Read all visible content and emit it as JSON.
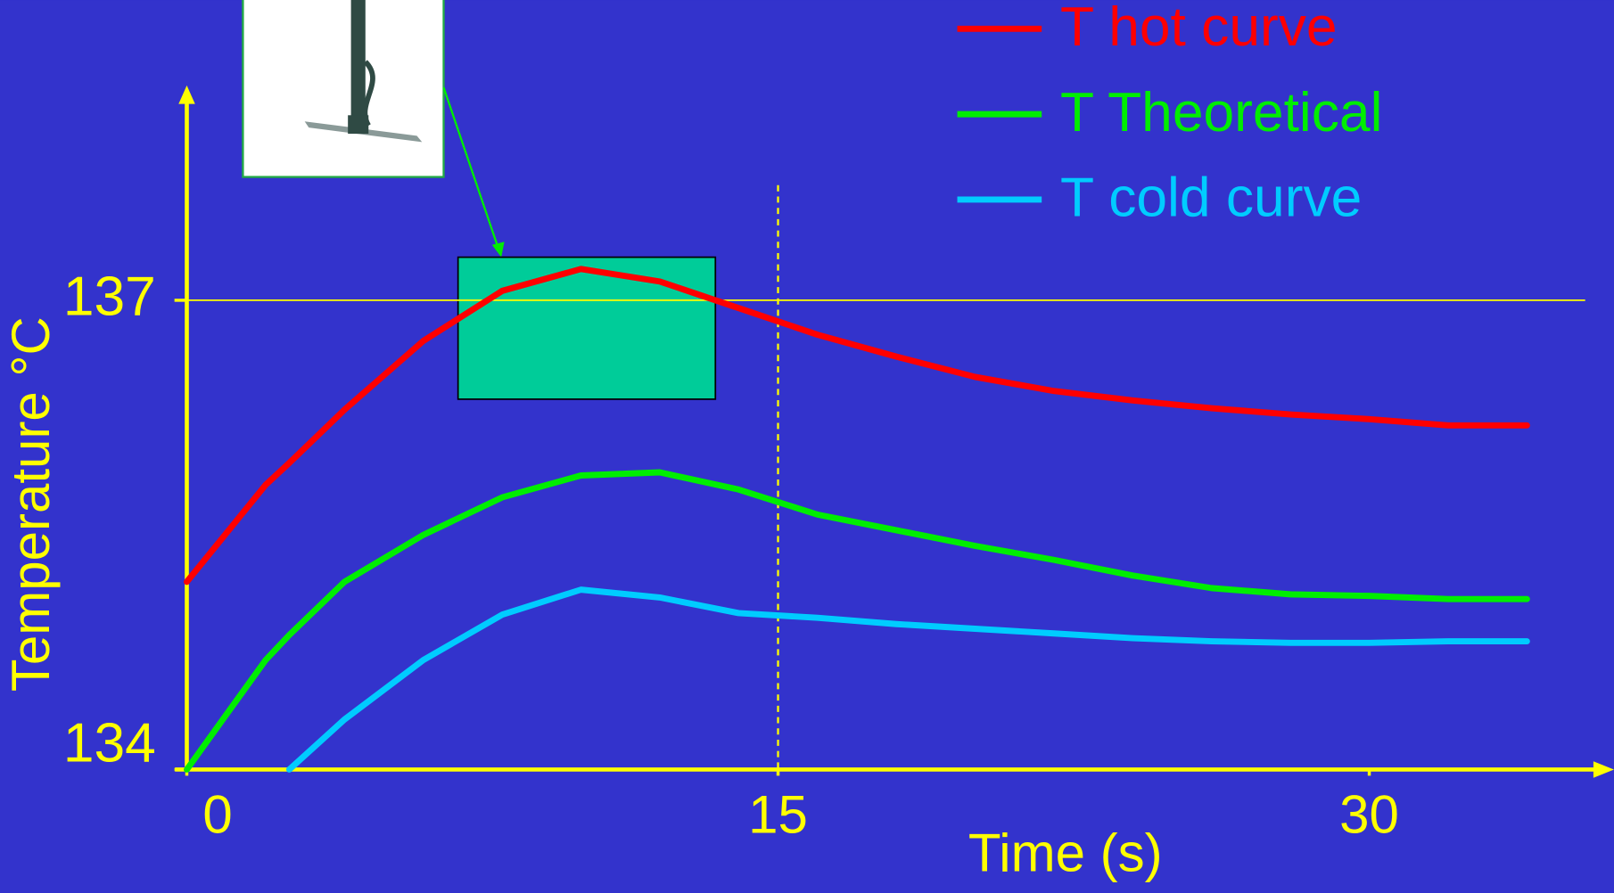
{
  "chart_data": {
    "type": "line",
    "x": [
      0,
      2,
      2.6,
      4,
      6,
      8,
      10,
      12,
      14,
      16,
      18,
      20,
      22,
      24,
      26,
      28,
      30,
      32,
      34
    ],
    "series": [
      {
        "name": "T hot curve",
        "color": "#ff0000",
        "values": [
          135.2,
          135.82,
          135.96,
          136.3,
          136.74,
          137.06,
          137.2,
          137.12,
          136.95,
          136.78,
          136.64,
          136.51,
          136.42,
          136.36,
          136.31,
          136.27,
          136.24,
          136.2,
          136.2
        ]
      },
      {
        "name": "T Theoretical",
        "color": "#00ee00",
        "values": [
          134.0,
          134.7,
          134.86,
          135.2,
          135.5,
          135.74,
          135.88,
          135.9,
          135.79,
          135.63,
          135.53,
          135.43,
          135.34,
          135.24,
          135.16,
          135.12,
          135.11,
          135.09,
          135.09
        ]
      },
      {
        "name": "T cold curve",
        "color": "#00ccff",
        "values": [
          null,
          null,
          134.0,
          134.32,
          134.7,
          134.99,
          135.15,
          135.1,
          135.0,
          134.97,
          134.93,
          134.9,
          134.87,
          134.84,
          134.82,
          134.81,
          134.81,
          134.82,
          134.82
        ]
      }
    ],
    "xlabel": "Time (s)",
    "ylabel": "Temperature °C",
    "xlim": [
      -0.3,
      36
    ],
    "ylim": [
      134,
      138.4
    ],
    "xticks": [
      0,
      15,
      30
    ],
    "yticks": [
      134,
      137
    ],
    "hline": 137,
    "vline": 15,
    "axis_color": "#ffff00"
  }
}
